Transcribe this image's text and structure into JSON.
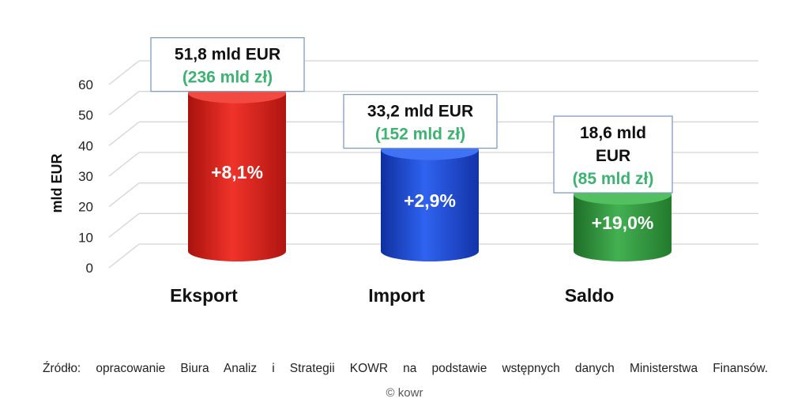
{
  "chart_data": {
    "type": "bar",
    "ylabel": "mld EUR",
    "ylim": [
      0,
      60
    ],
    "yticks": [
      0,
      10,
      20,
      30,
      40,
      50,
      60
    ],
    "grid": true,
    "categories": [
      "Eksport",
      "Import",
      "Saldo"
    ],
    "values": [
      51.8,
      33.2,
      18.6
    ],
    "bar_labels": [
      "+8,1%",
      "+2,9%",
      "+19,0%"
    ],
    "callouts": [
      {
        "eur": "51,8 mld EUR",
        "pln": "(236 mld zł)"
      },
      {
        "eur": "33,2 mld EUR",
        "pln": "(152 mld zł)"
      },
      {
        "eur": "18,6 mld\nEUR",
        "pln": "(85 mld zł)"
      }
    ],
    "colors": [
      "#e8231c",
      "#1f4fe0",
      "#2f9a3c"
    ],
    "callout_pln_color": "#3cb371"
  },
  "footer": {
    "source": "Źródło: opracowanie Biura Analiz i Strategii KOWR na podstawie wstępnych danych Ministerstwa Finansów.",
    "credit": "© kowr"
  }
}
